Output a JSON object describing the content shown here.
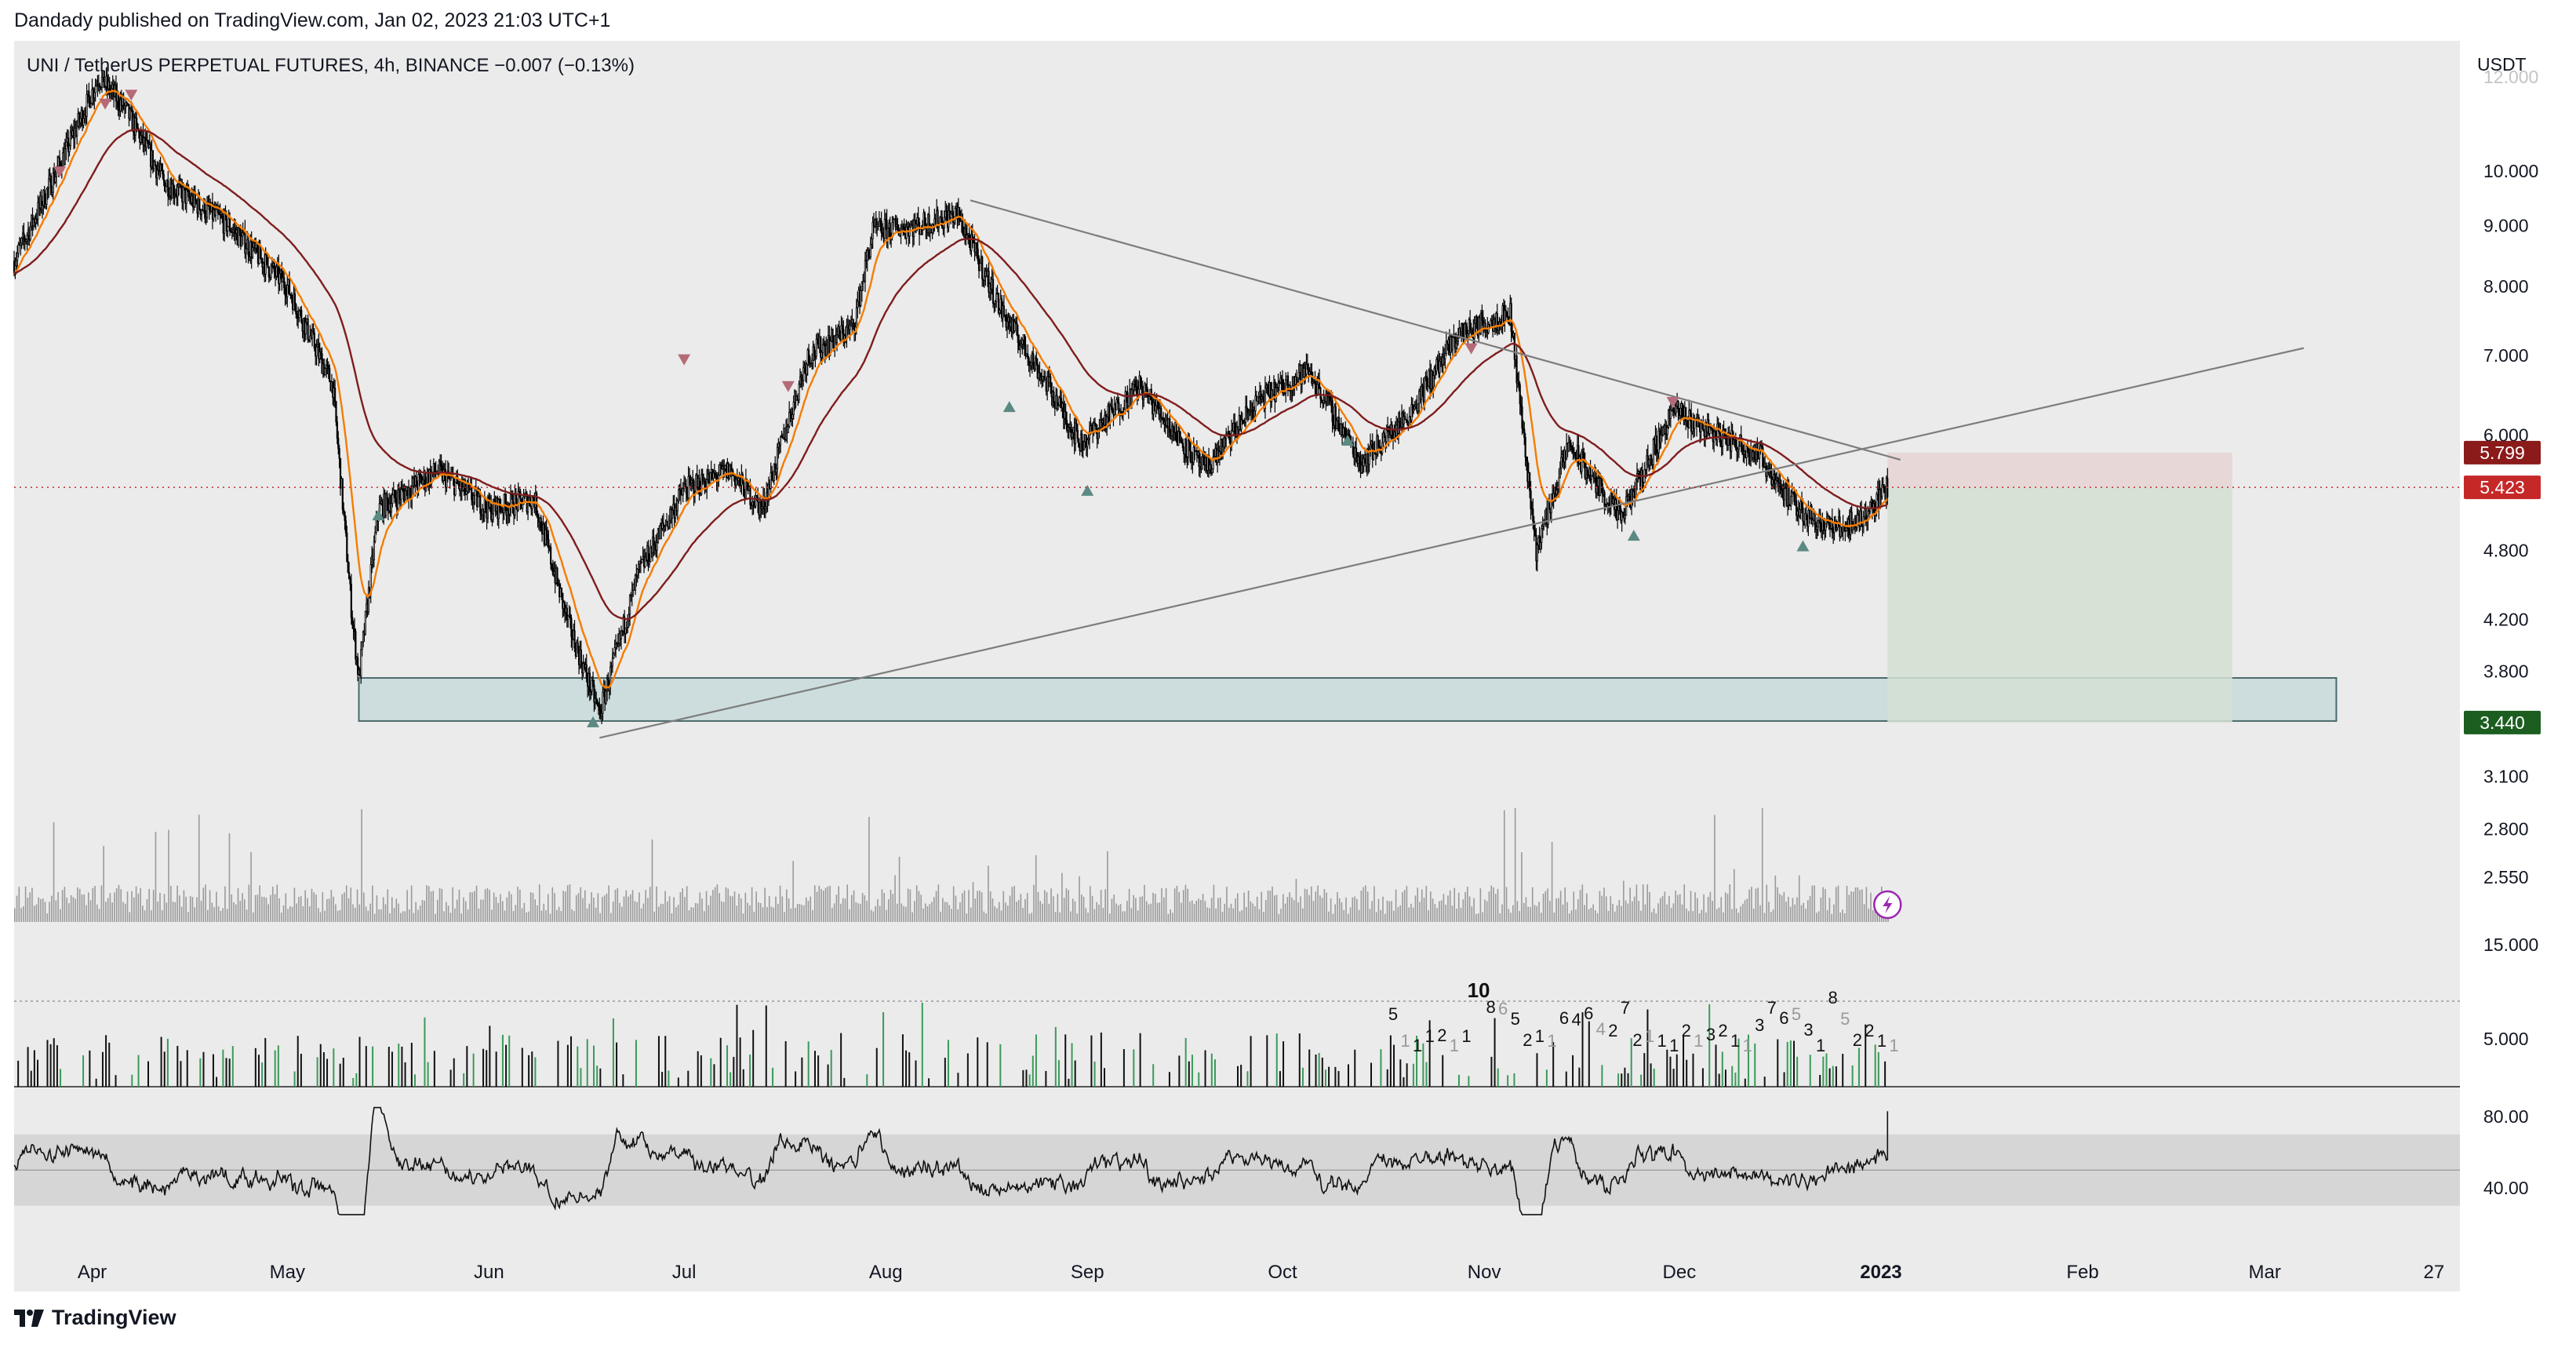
{
  "publisher_line": "Dandady published on TradingView.com, Jan 02, 2023 21:03 UTC+1",
  "legend": {
    "symbol": "UNI / TetherUS PERPETUAL FUTURES, 4h, BINANCE",
    "change": "−0.007 (−0.13%)"
  },
  "footer_brand": "TradingView",
  "colors": {
    "background": "#ebebeb",
    "candles": "#000000",
    "ema_fast": "#f57c00",
    "ema_slow": "#7f1d1d",
    "price_label": "#c62828",
    "target_label": "#1b5e20",
    "stop_label": "#8b1a1a",
    "zone_fill": "#c8dada",
    "long_profit": "#d4e0d4",
    "long_risk": "#e6d3d3",
    "signal_green": "#2e7d32",
    "signal_red": "#c62828"
  },
  "chart_data": [
    {
      "type": "candlestick",
      "title": "",
      "timeframe": "4h",
      "price_scale": "log",
      "currency_label": "USDT",
      "x_axis_labels": [
        "Apr",
        "May",
        "Jun",
        "Jul",
        "Aug",
        "Sep",
        "Oct",
        "Nov",
        "Dec",
        "2023",
        "Feb",
        "Mar",
        "27"
      ],
      "y_ticks": [
        "10.000",
        "9.000",
        "8.000",
        "7.000",
        "6.000",
        "4.800",
        "4.200",
        "3.800",
        "3.100",
        "2.800",
        "2.550"
      ],
      "y_ticks_partial": "12.000",
      "price_points": [
        {
          "date": "2022-03-20",
          "close": 8.4
        },
        {
          "date": "2022-03-28",
          "close": 10.4
        },
        {
          "date": "2022-04-02",
          "close": 12.0
        },
        {
          "date": "2022-04-06",
          "close": 11.3
        },
        {
          "date": "2022-04-12",
          "close": 9.8
        },
        {
          "date": "2022-04-22",
          "close": 9.0
        },
        {
          "date": "2022-05-01",
          "close": 8.0
        },
        {
          "date": "2022-05-08",
          "close": 6.6
        },
        {
          "date": "2022-05-11",
          "close": 4.2
        },
        {
          "date": "2022-05-12",
          "close": 3.75
        },
        {
          "date": "2022-05-15",
          "close": 5.2
        },
        {
          "date": "2022-05-24",
          "close": 5.6
        },
        {
          "date": "2022-06-01",
          "close": 5.2
        },
        {
          "date": "2022-06-08",
          "close": 5.3
        },
        {
          "date": "2022-06-13",
          "close": 4.2
        },
        {
          "date": "2022-06-18",
          "close": 3.5
        },
        {
          "date": "2022-06-24",
          "close": 4.6
        },
        {
          "date": "2022-07-01",
          "close": 5.4
        },
        {
          "date": "2022-07-08",
          "close": 5.6
        },
        {
          "date": "2022-07-13",
          "close": 5.2
        },
        {
          "date": "2022-07-20",
          "close": 7.0
        },
        {
          "date": "2022-07-27",
          "close": 7.4
        },
        {
          "date": "2022-07-30",
          "close": 8.9
        },
        {
          "date": "2022-08-06",
          "close": 9.0
        },
        {
          "date": "2022-08-12",
          "close": 9.2
        },
        {
          "date": "2022-08-19",
          "close": 7.6
        },
        {
          "date": "2022-08-26",
          "close": 6.6
        },
        {
          "date": "2022-08-31",
          "close": 5.9
        },
        {
          "date": "2022-09-09",
          "close": 6.6
        },
        {
          "date": "2022-09-19",
          "close": 5.6
        },
        {
          "date": "2022-09-27",
          "close": 6.4
        },
        {
          "date": "2022-10-05",
          "close": 6.8
        },
        {
          "date": "2022-10-13",
          "close": 5.7
        },
        {
          "date": "2022-10-20",
          "close": 6.2
        },
        {
          "date": "2022-10-28",
          "close": 7.3
        },
        {
          "date": "2022-11-05",
          "close": 7.6
        },
        {
          "date": "2022-11-09",
          "close": 4.8
        },
        {
          "date": "2022-11-14",
          "close": 5.9
        },
        {
          "date": "2022-11-22",
          "close": 5.1
        },
        {
          "date": "2022-11-30",
          "close": 6.3
        },
        {
          "date": "2022-12-07",
          "close": 6.0
        },
        {
          "date": "2022-12-13",
          "close": 5.8
        },
        {
          "date": "2022-12-19",
          "close": 5.2
        },
        {
          "date": "2022-12-25",
          "close": 5.0
        },
        {
          "date": "2022-12-29",
          "close": 5.1
        },
        {
          "date": "2023-01-02",
          "close": 5.423
        }
      ],
      "last_price": "5.423",
      "position_tool": {
        "side": "long",
        "entry": 5.423,
        "stop_label": "5.799",
        "target_label": "3.440",
        "start": "2023-01-02",
        "end": "2023-02-24"
      },
      "demand_zone": {
        "low": 3.45,
        "high": 3.75,
        "start": "2022-05-12",
        "end": "2023-03-12"
      },
      "trendlines": [
        {
          "name": "descending",
          "from": {
            "date": "2022-08-14",
            "price": 9.45
          },
          "to": {
            "date": "2023-01-04",
            "price": 5.72
          }
        },
        {
          "name": "ascending",
          "from": {
            "date": "2022-06-18",
            "price": 3.34
          },
          "to": {
            "date": "2023-03-07",
            "price": 7.1
          }
        }
      ],
      "moving_averages": [
        "ema_fast",
        "ema_slow"
      ]
    },
    {
      "type": "bar",
      "title": "",
      "y_ticks": [
        "15.000",
        "5.000"
      ],
      "sequence_labels": [
        "5",
        "1",
        "1",
        "1",
        "2",
        "1",
        "1",
        "10",
        "8",
        "6",
        "5",
        "2",
        "1",
        "1",
        "6",
        "4",
        "6",
        "4",
        "2",
        "7",
        "2",
        "1",
        "1",
        "1",
        "2",
        "1",
        "3",
        "2",
        "1",
        "1",
        "3",
        "7",
        "6",
        "5",
        "3",
        "1",
        "8",
        "5",
        "2",
        "2",
        "1",
        "1"
      ]
    },
    {
      "type": "line",
      "title": "",
      "y_ticks": [
        "80.00",
        "40.00"
      ],
      "band": [
        30,
        70
      ],
      "mid": 50,
      "last_value": 83
    }
  ]
}
